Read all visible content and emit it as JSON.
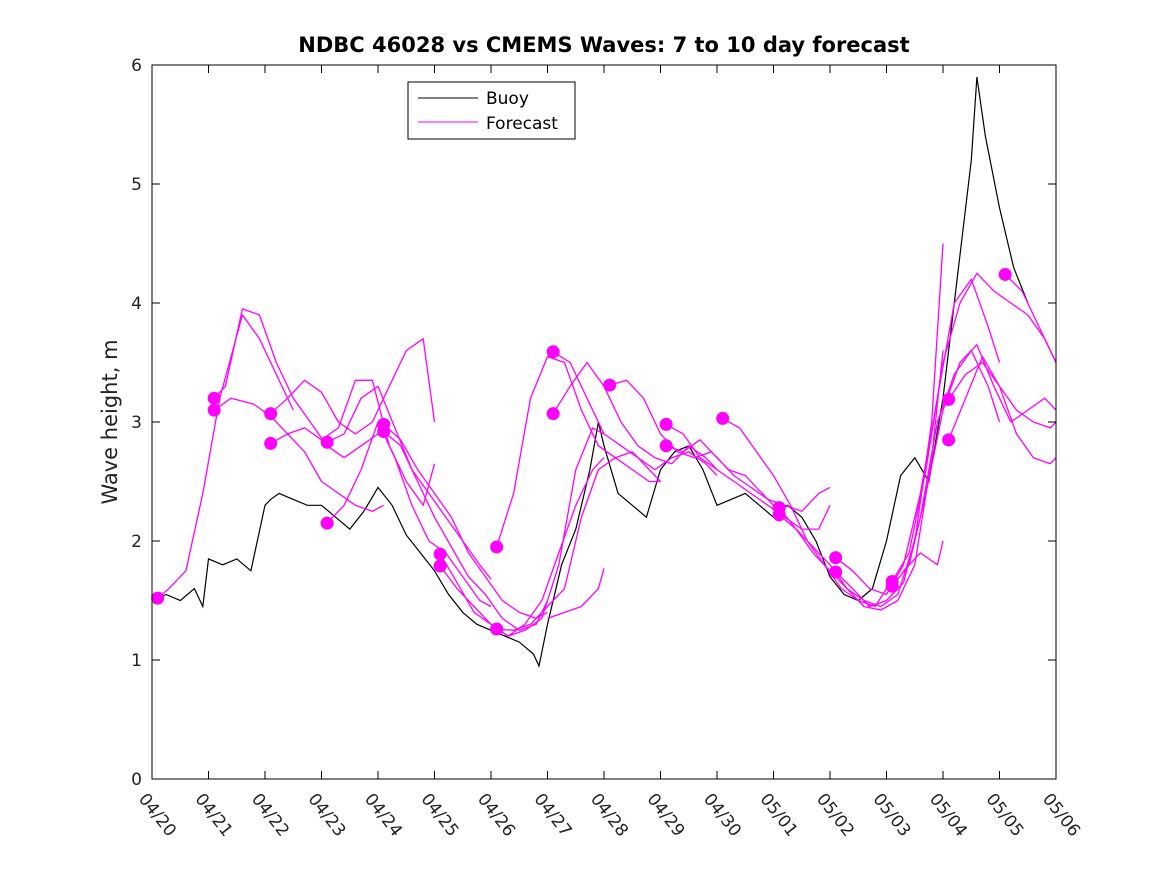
{
  "chart_data": {
    "type": "line",
    "title": "NDBC 46028 vs CMEMS Waves: 7 to 10 day forecast",
    "xlabel": "",
    "ylabel": "Wave height, m",
    "xlim": [
      0,
      16
    ],
    "ylim": [
      0,
      6
    ],
    "x_tick_labels": [
      "04/20",
      "04/21",
      "04/22",
      "04/23",
      "04/24",
      "04/25",
      "04/26",
      "04/27",
      "04/28",
      "04/29",
      "04/30",
      "05/01",
      "05/02",
      "05/03",
      "05/04",
      "05/05",
      "05/06"
    ],
    "y_ticks": [
      0,
      1,
      2,
      3,
      4,
      5,
      6
    ],
    "legend": {
      "placement": "top-center",
      "entries": [
        "Buoy",
        "Forecast"
      ]
    },
    "colors": {
      "buoy": "#000000",
      "forecast": "#ff00ff"
    },
    "grid": false,
    "buoy": {
      "x": [
        0.0,
        0.25,
        0.5,
        0.75,
        0.9,
        1.0,
        1.25,
        1.5,
        1.75,
        2.0,
        2.1,
        2.25,
        2.5,
        2.75,
        3.0,
        3.25,
        3.5,
        3.75,
        4.0,
        4.25,
        4.5,
        4.75,
        5.0,
        5.25,
        5.5,
        5.75,
        6.0,
        6.25,
        6.5,
        6.75,
        6.85,
        7.0,
        7.25,
        7.5,
        7.75,
        7.9,
        8.0,
        8.25,
        8.5,
        8.75,
        9.0,
        9.25,
        9.5,
        9.75,
        10.0,
        10.25,
        10.5,
        10.75,
        11.0,
        11.25,
        11.5,
        11.75,
        12.0,
        12.25,
        12.5,
        12.75,
        13.0,
        13.25,
        13.5,
        13.75,
        14.0,
        14.25,
        14.5,
        14.6,
        14.75,
        15.0,
        15.25,
        15.5
      ],
      "y": [
        1.5,
        1.55,
        1.5,
        1.6,
        1.45,
        1.85,
        1.8,
        1.85,
        1.75,
        2.3,
        2.35,
        2.4,
        2.35,
        2.3,
        2.3,
        2.2,
        2.1,
        2.25,
        2.45,
        2.3,
        2.05,
        1.9,
        1.75,
        1.55,
        1.4,
        1.3,
        1.25,
        1.2,
        1.15,
        1.05,
        0.95,
        1.3,
        1.8,
        2.1,
        2.6,
        3.0,
        2.8,
        2.4,
        2.3,
        2.2,
        2.6,
        2.75,
        2.8,
        2.6,
        2.3,
        2.35,
        2.4,
        2.3,
        2.2,
        2.3,
        2.2,
        2.0,
        1.7,
        1.55,
        1.5,
        1.6,
        2.0,
        2.55,
        2.7,
        2.5,
        3.2,
        4.2,
        5.2,
        5.9,
        5.4,
        4.8,
        4.3,
        4.0
      ]
    },
    "forecast": [
      {
        "x": [
          0.1,
          0.3,
          0.6,
          0.9,
          1.2,
          1.6,
          1.9,
          2.2,
          2.5
        ],
        "y": [
          1.52,
          1.6,
          1.75,
          2.4,
          3.2,
          3.9,
          3.7,
          3.4,
          3.1
        ]
      },
      {
        "x": [
          1.1,
          1.3,
          1.6,
          1.9,
          2.2,
          2.5,
          2.8,
          3.1,
          3.4,
          3.7,
          4.0
        ],
        "y": [
          3.2,
          3.3,
          3.95,
          3.9,
          3.5,
          3.2,
          3.0,
          2.8,
          2.7,
          2.8,
          2.9
        ]
      },
      {
        "x": [
          1.1,
          1.4,
          1.8,
          2.1,
          2.4,
          2.7,
          3.0,
          3.3,
          3.6,
          3.9,
          4.1
        ],
        "y": [
          3.1,
          3.2,
          3.15,
          3.05,
          2.9,
          2.75,
          2.5,
          2.4,
          2.3,
          2.25,
          2.3
        ]
      },
      {
        "x": [
          2.1,
          2.4,
          2.7,
          3.0,
          3.3,
          3.6,
          3.9,
          4.2,
          4.5,
          4.8,
          5.0
        ],
        "y": [
          3.07,
          3.2,
          3.35,
          3.25,
          3.0,
          2.9,
          3.0,
          3.3,
          3.6,
          3.7,
          3.0
        ]
      },
      {
        "x": [
          2.1,
          2.4,
          2.7,
          3.0,
          3.3,
          3.6,
          3.9,
          4.2,
          4.5,
          4.8,
          5.0
        ],
        "y": [
          2.82,
          2.9,
          2.95,
          2.85,
          2.95,
          3.35,
          3.35,
          2.8,
          2.5,
          2.3,
          2.65
        ]
      },
      {
        "x": [
          3.1,
          3.4,
          3.7,
          4.0,
          4.3,
          4.6,
          4.9,
          5.2,
          5.5,
          5.8,
          6.0
        ],
        "y": [
          2.83,
          2.9,
          3.2,
          3.3,
          2.95,
          2.6,
          2.4,
          2.2,
          2.0,
          1.8,
          1.68
        ]
      },
      {
        "x": [
          3.1,
          3.4,
          3.7,
          4.0,
          4.3,
          4.6,
          4.9,
          5.2,
          5.5,
          5.8,
          6.0
        ],
        "y": [
          2.15,
          2.3,
          2.6,
          3.0,
          2.7,
          2.3,
          2.0,
          1.9,
          1.7,
          1.5,
          1.45
        ]
      },
      {
        "x": [
          4.1,
          4.4,
          4.7,
          5.0,
          5.3,
          5.6,
          5.9,
          6.2,
          6.5,
          6.8,
          7.0
        ],
        "y": [
          2.98,
          2.85,
          2.6,
          2.4,
          2.2,
          1.9,
          1.7,
          1.5,
          1.4,
          1.35,
          1.4
        ]
      },
      {
        "x": [
          4.1,
          4.4,
          4.7,
          5.0,
          5.3,
          5.6,
          5.9,
          6.2,
          6.5,
          6.8,
          7.0
        ],
        "y": [
          2.92,
          2.8,
          2.5,
          2.2,
          1.95,
          1.7,
          1.55,
          1.35,
          1.25,
          1.3,
          1.5
        ]
      },
      {
        "x": [
          5.1,
          5.4,
          5.7,
          6.0,
          6.3,
          6.6,
          6.9,
          7.2,
          7.5,
          7.8,
          8.0
        ],
        "y": [
          1.89,
          1.65,
          1.4,
          1.3,
          1.2,
          1.25,
          1.35,
          1.8,
          2.6,
          2.95,
          2.9
        ]
      },
      {
        "x": [
          5.1,
          5.4,
          5.7,
          6.0,
          6.3,
          6.6,
          6.9,
          7.2,
          7.5,
          7.8,
          8.0
        ],
        "y": [
          1.79,
          1.6,
          1.45,
          1.3,
          1.2,
          1.3,
          1.5,
          1.9,
          2.3,
          2.6,
          2.7
        ]
      },
      {
        "x": [
          6.1,
          6.4,
          6.7,
          7.0,
          7.3,
          7.6,
          7.9,
          8.2,
          8.5,
          8.8,
          9.0
        ],
        "y": [
          1.95,
          2.4,
          3.2,
          3.55,
          3.5,
          3.1,
          2.8,
          2.7,
          2.6,
          2.5,
          2.5
        ]
      },
      {
        "x": [
          6.1,
          6.4,
          6.7,
          7.0,
          7.3,
          7.6,
          7.9,
          8.2,
          8.5,
          8.8,
          9.0
        ],
        "y": [
          1.26,
          1.25,
          1.3,
          1.45,
          1.6,
          2.2,
          2.6,
          2.7,
          2.75,
          2.6,
          2.5
        ]
      },
      {
        "x": [
          7.1,
          7.4,
          7.7,
          8.0,
          8.3,
          8.6,
          8.9,
          9.2,
          9.5,
          9.8,
          10.0
        ],
        "y": [
          3.59,
          3.5,
          3.2,
          2.9,
          2.8,
          2.7,
          2.6,
          2.7,
          2.75,
          2.65,
          2.55
        ]
      },
      {
        "x": [
          7.1,
          7.4,
          7.7,
          8.0,
          8.3,
          8.6,
          8.9,
          9.2,
          9.5,
          9.8,
          10.0
        ],
        "y": [
          3.07,
          3.3,
          3.5,
          3.3,
          3.0,
          2.8,
          2.7,
          2.65,
          2.8,
          2.7,
          2.6
        ]
      },
      {
        "x": [
          7.0,
          7.3,
          7.6,
          7.9,
          8.0
        ],
        "y": [
          1.35,
          1.4,
          1.45,
          1.6,
          1.77
        ]
      },
      {
        "x": [
          8.1,
          8.4,
          8.7,
          9.0,
          9.3,
          9.6,
          9.9,
          10.2,
          10.5,
          10.8,
          11.0
        ],
        "y": [
          3.31,
          3.35,
          3.2,
          2.9,
          2.75,
          2.7,
          2.75,
          2.6,
          2.55,
          2.4,
          2.3
        ]
      },
      {
        "x": [
          9.1,
          9.4,
          9.7,
          10.0,
          10.3,
          10.6,
          10.9,
          11.2,
          11.5,
          11.8,
          12.0
        ],
        "y": [
          2.98,
          2.9,
          2.7,
          2.6,
          2.5,
          2.4,
          2.3,
          2.2,
          2.1,
          2.1,
          2.3
        ]
      },
      {
        "x": [
          9.1,
          9.4,
          9.7,
          10.0,
          10.3,
          10.6,
          10.9,
          11.2,
          11.5,
          11.8,
          12.0
        ],
        "y": [
          2.8,
          2.75,
          2.85,
          2.7,
          2.55,
          2.45,
          2.35,
          2.3,
          2.25,
          2.4,
          2.45
        ]
      },
      {
        "x": [
          10.1,
          10.4,
          10.7,
          11.0,
          11.3,
          11.6,
          11.9,
          12.2,
          12.5,
          12.8,
          13.0
        ],
        "y": [
          3.03,
          2.95,
          2.75,
          2.55,
          2.3,
          2.0,
          1.8,
          1.6,
          1.5,
          1.45,
          1.6
        ]
      },
      {
        "x": [
          11.1,
          11.4,
          11.7,
          12.0,
          12.3,
          12.6,
          12.9,
          13.2,
          13.5,
          13.8,
          14.0
        ],
        "y": [
          2.28,
          2.1,
          1.9,
          1.75,
          1.6,
          1.5,
          1.45,
          1.55,
          2.0,
          3.0,
          4.5
        ]
      },
      {
        "x": [
          11.1,
          11.4,
          11.7,
          12.0,
          12.3,
          12.6,
          12.9,
          13.2,
          13.5,
          13.8,
          14.0
        ],
        "y": [
          2.22,
          2.1,
          1.95,
          1.8,
          1.6,
          1.45,
          1.42,
          1.5,
          1.8,
          2.7,
          3.6
        ]
      },
      {
        "x": [
          12.1,
          12.4,
          12.7,
          13.0,
          13.3,
          13.6,
          13.9,
          14.2,
          14.5,
          14.8,
          15.0
        ],
        "y": [
          1.86,
          1.75,
          1.6,
          1.55,
          1.8,
          2.4,
          3.2,
          4.0,
          4.2,
          3.8,
          3.5
        ]
      },
      {
        "x": [
          12.1,
          12.4,
          12.7,
          13.0,
          13.3,
          13.6,
          13.9,
          14.2,
          14.5,
          14.8,
          15.0
        ],
        "y": [
          1.74,
          1.6,
          1.45,
          1.5,
          1.65,
          2.2,
          3.0,
          3.4,
          3.6,
          3.3,
          3.0
        ]
      },
      {
        "x": [
          13.1,
          13.4,
          13.7,
          14.0,
          14.3,
          14.6,
          14.9,
          15.2,
          15.5,
          15.8,
          16.0
        ],
        "y": [
          1.66,
          1.9,
          2.6,
          3.5,
          4.0,
          4.25,
          4.1,
          4.0,
          3.9,
          3.7,
          3.5
        ]
      },
      {
        "x": [
          13.1,
          13.4,
          13.7,
          14.0,
          14.3,
          14.6,
          14.9,
          15.2,
          15.5,
          15.8,
          16.0
        ],
        "y": [
          1.62,
          1.8,
          2.4,
          3.1,
          3.5,
          3.65,
          3.3,
          3.0,
          3.1,
          3.2,
          3.1
        ]
      },
      {
        "x": [
          14.1,
          14.4,
          14.7,
          15.0,
          15.3,
          15.6,
          15.9,
          16.0
        ],
        "y": [
          3.19,
          3.4,
          3.5,
          3.3,
          3.1,
          3.0,
          2.95,
          3.0
        ]
      },
      {
        "x": [
          14.1,
          14.4,
          14.7,
          15.0,
          15.3,
          15.6,
          15.9,
          16.0
        ],
        "y": [
          2.85,
          3.2,
          3.55,
          3.3,
          2.9,
          2.7,
          2.65,
          2.7
        ]
      },
      {
        "x": [
          15.1,
          15.4,
          15.7,
          16.0
        ],
        "y": [
          4.24,
          4.1,
          3.8,
          3.5
        ]
      },
      {
        "x": [
          13.3,
          13.6,
          13.9,
          14.0
        ],
        "y": [
          1.75,
          1.9,
          1.8,
          2.0
        ]
      }
    ],
    "forecast_markers": {
      "x": [
        0.1,
        1.1,
        1.1,
        2.1,
        2.1,
        3.1,
        3.1,
        4.1,
        4.1,
        5.1,
        5.1,
        6.1,
        6.1,
        7.1,
        7.1,
        8.1,
        9.1,
        9.1,
        10.1,
        11.1,
        11.1,
        12.1,
        12.1,
        13.1,
        13.1,
        14.1,
        14.1,
        15.1
      ],
      "y": [
        1.52,
        3.2,
        3.1,
        3.07,
        2.82,
        2.83,
        2.15,
        2.98,
        2.92,
        1.89,
        1.79,
        1.95,
        1.26,
        3.59,
        3.07,
        3.31,
        2.98,
        2.8,
        3.03,
        2.28,
        2.22,
        1.86,
        1.74,
        1.66,
        1.62,
        3.19,
        2.85,
        4.24
      ]
    }
  }
}
